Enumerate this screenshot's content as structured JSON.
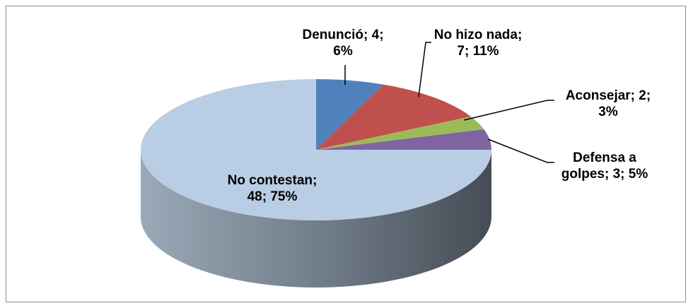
{
  "chart_data": {
    "type": "pie3d",
    "categories": [
      "Denunció",
      "No hizo nada",
      "Aconsejar",
      "Defensa a golpes",
      "No contestan"
    ],
    "values": [
      4,
      7,
      2,
      3,
      48
    ],
    "value_labels": [
      "Denunció; 4;\n6%",
      "No hizo nada;\n7; 11%",
      "Aconsejar; 2;\n3%",
      "Defensa a\ngolpes; 3; 5%",
      "No contestan;\n48; 75%"
    ],
    "colors": [
      "#4f81bd",
      "#c0504d",
      "#9bbb59",
      "#8064a2",
      "#b9cde4"
    ]
  }
}
